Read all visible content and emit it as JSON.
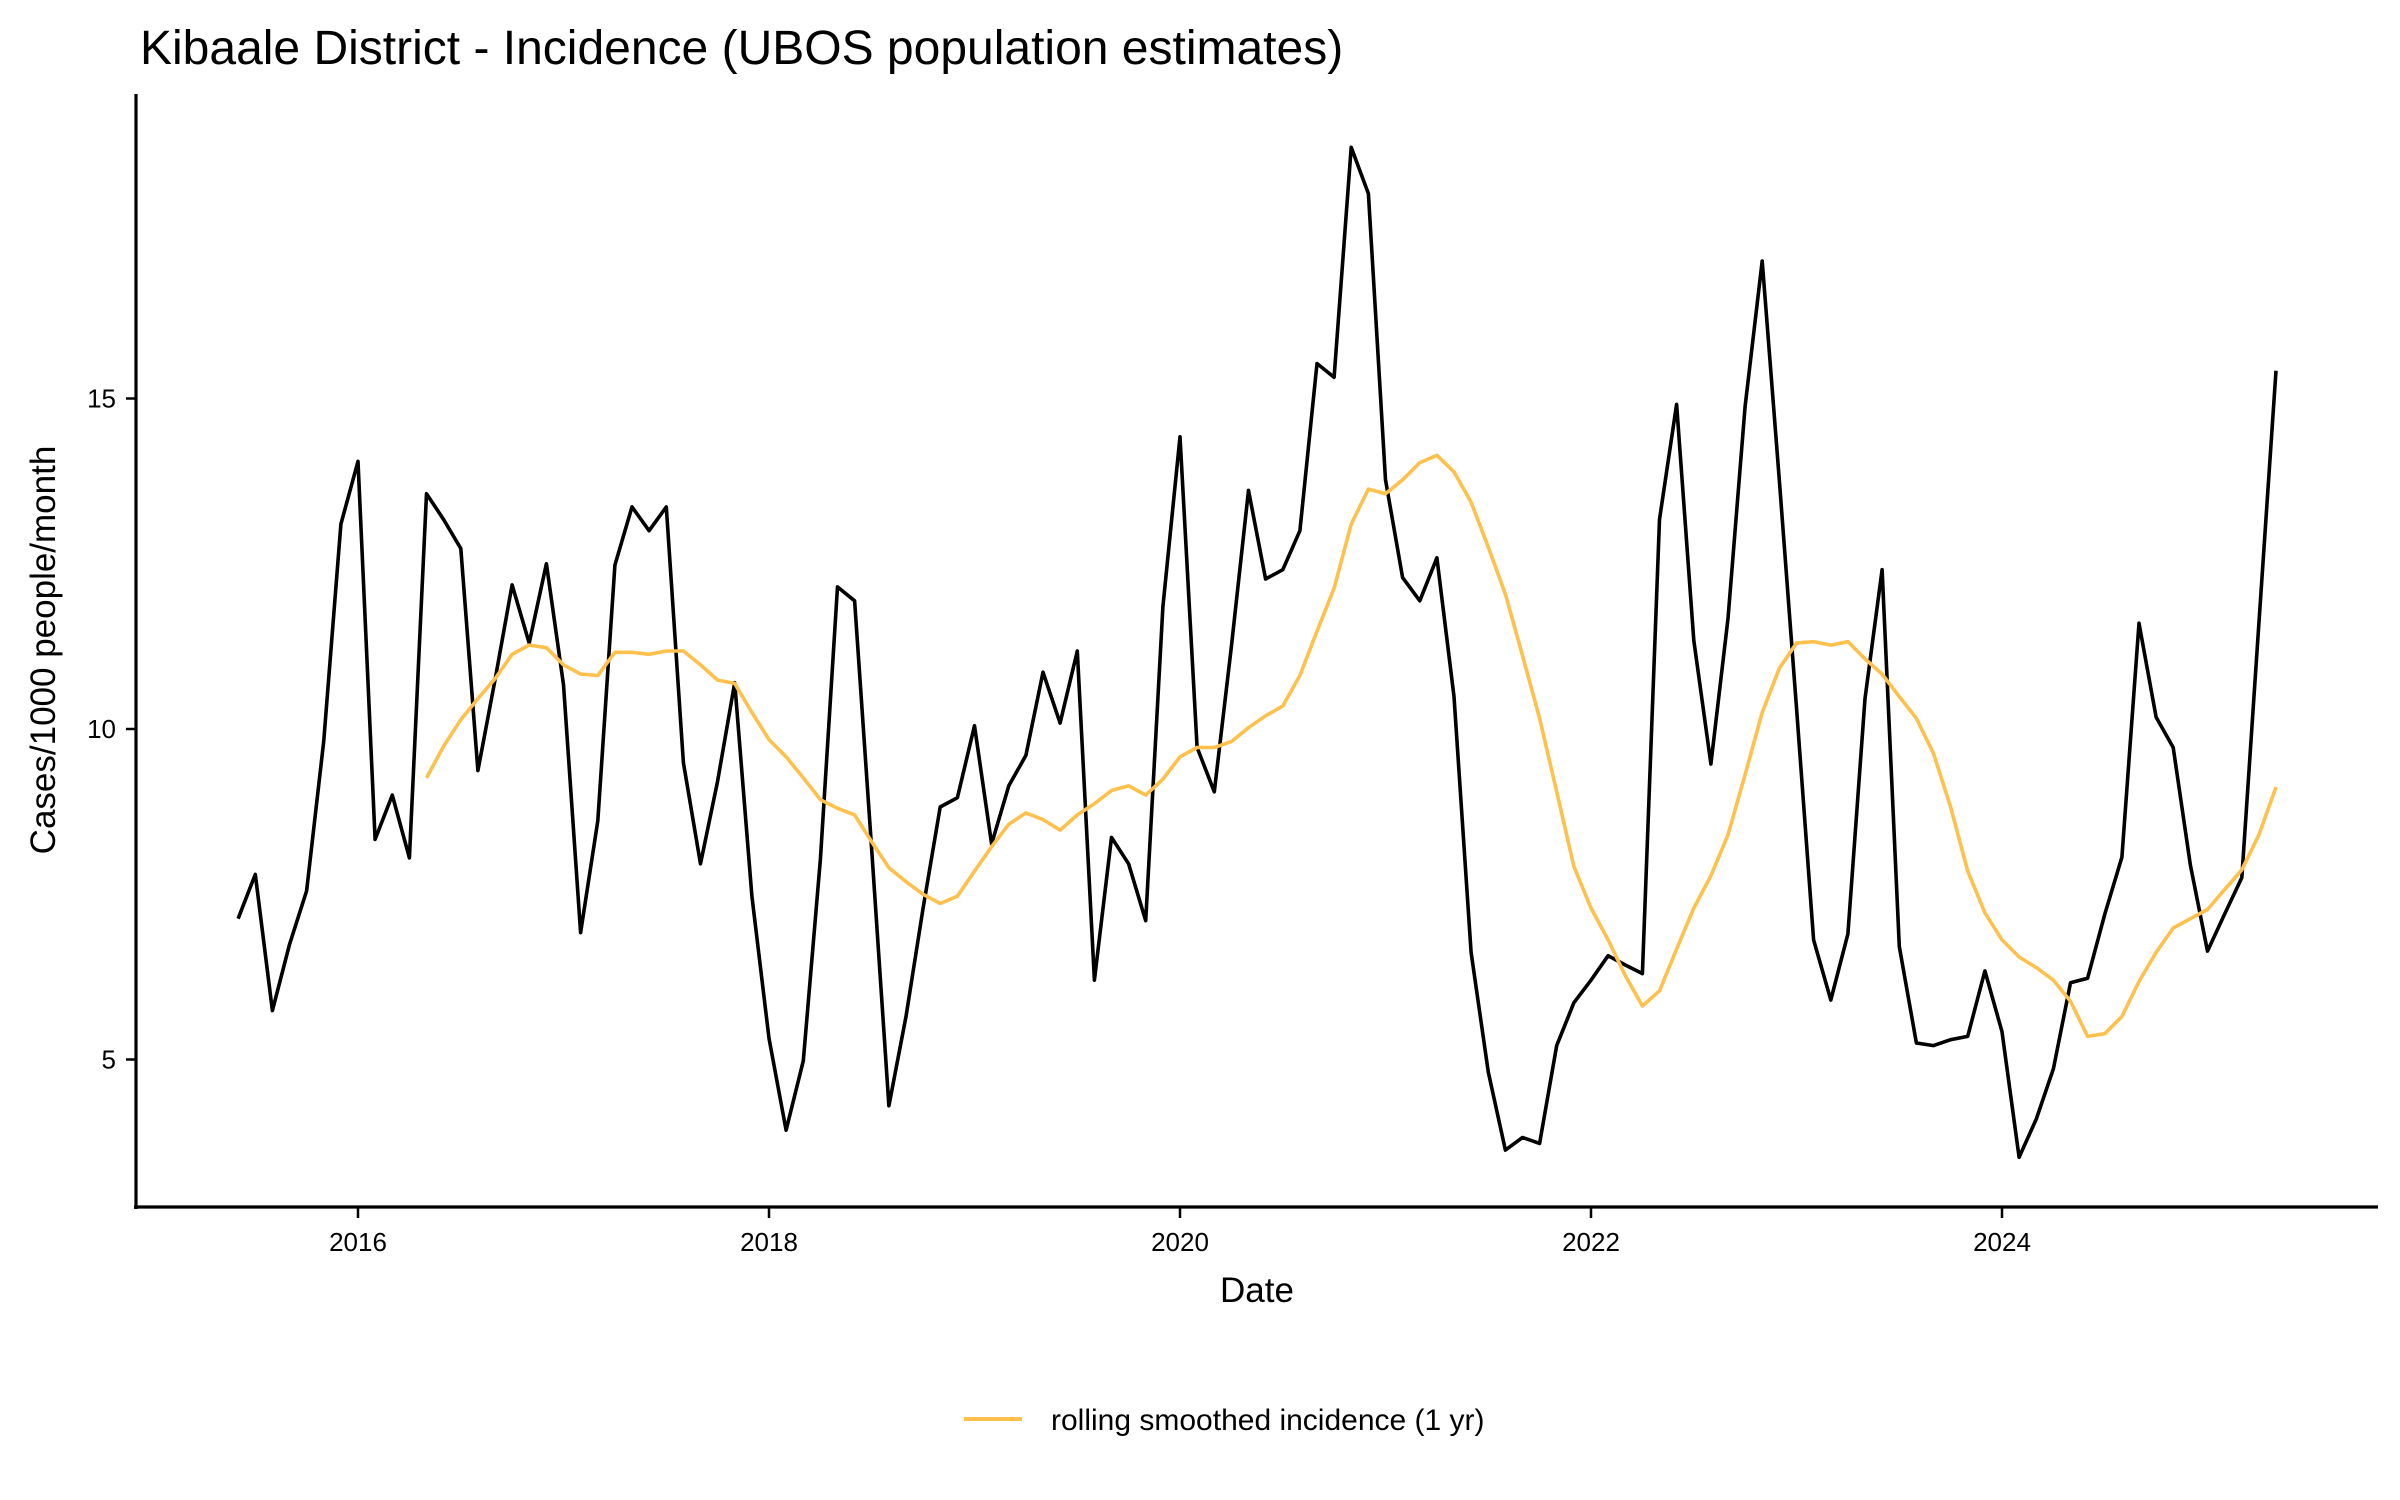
{
  "chart_data": {
    "type": "line",
    "title": "Kibaale District - Incidence (UBOS population estimates)",
    "xlabel": "Date",
    "ylabel": "Cases/1000 people/month",
    "x_ticks": [
      "2016",
      "2018",
      "2020",
      "2022",
      "2024"
    ],
    "y_ticks": [
      "5",
      "10",
      "15"
    ],
    "xlim": [
      "2015-06",
      "2025-05"
    ],
    "ylim": [
      3.0,
      19.2
    ],
    "grid": false,
    "legend": {
      "position": "bottom",
      "entries": [
        {
          "label": "rolling smoothed incidence (1 yr)",
          "color": "#FFC04C"
        }
      ]
    },
    "series": [
      {
        "name": "incidence",
        "color": "#000000",
        "start": "2015-06",
        "frequency": "monthly",
        "values": [
          7.13,
          7.8,
          5.74,
          6.74,
          7.55,
          9.81,
          13.1,
          14.05,
          8.33,
          9.0,
          8.05,
          13.56,
          13.17,
          12.73,
          9.37,
          10.74,
          12.18,
          11.3,
          12.5,
          10.67,
          6.92,
          8.61,
          12.48,
          13.36,
          13.0,
          13.36,
          9.49,
          7.96,
          9.21,
          10.7,
          7.47,
          5.32,
          3.93,
          4.98,
          8.03,
          12.15,
          11.94,
          8.15,
          4.3,
          5.65,
          7.29,
          8.82,
          8.96,
          10.05,
          8.26,
          9.14,
          9.6,
          10.86,
          10.09,
          11.18,
          6.2,
          8.36,
          7.96,
          7.1,
          11.85,
          14.42,
          9.72,
          9.05,
          11.25,
          13.61,
          12.27,
          12.41,
          13.0,
          15.53,
          15.32,
          18.8,
          18.1,
          13.77,
          12.29,
          11.94,
          12.59,
          10.49,
          6.62,
          4.81,
          3.63,
          3.82,
          3.73,
          5.21,
          5.86,
          6.2,
          6.57,
          6.43,
          6.3,
          13.17,
          14.91,
          11.34,
          9.47,
          11.67,
          14.88,
          17.08,
          13.75,
          10.32,
          6.81,
          5.9,
          6.9,
          10.46,
          12.41,
          6.71,
          5.25,
          5.21,
          5.3,
          5.35,
          6.34,
          5.42,
          3.52,
          4.1,
          4.86,
          6.16,
          6.23,
          7.2,
          8.06,
          11.6,
          10.18,
          9.72,
          7.94,
          6.64,
          7.2,
          7.75,
          11.6,
          15.42
        ]
      },
      {
        "name": "rolling smoothed incidence (1 yr)",
        "color": "#FFC04C",
        "start": "2016-05",
        "frequency": "monthly",
        "values": [
          9.26,
          9.74,
          10.14,
          10.46,
          10.76,
          11.13,
          11.27,
          11.23,
          10.97,
          10.83,
          10.81,
          11.16,
          11.16,
          11.13,
          11.18,
          11.18,
          10.97,
          10.74,
          10.69,
          10.25,
          9.84,
          9.58,
          9.26,
          8.93,
          8.8,
          8.7,
          8.29,
          7.9,
          7.69,
          7.5,
          7.36,
          7.47,
          7.85,
          8.22,
          8.56,
          8.73,
          8.63,
          8.47,
          8.7,
          8.87,
          9.07,
          9.14,
          9.0,
          9.24,
          9.58,
          9.72,
          9.72,
          9.81,
          10.02,
          10.2,
          10.35,
          10.81,
          11.48,
          12.13,
          13.1,
          13.63,
          13.56,
          13.77,
          14.03,
          14.14,
          13.89,
          13.43,
          12.75,
          12.04,
          11.11,
          10.16,
          9.05,
          7.92,
          7.29,
          6.81,
          6.27,
          5.81,
          6.04,
          6.67,
          7.29,
          7.78,
          8.4,
          9.31,
          10.25,
          10.92,
          11.3,
          11.32,
          11.27,
          11.32,
          11.06,
          10.83,
          10.49,
          10.16,
          9.63,
          8.82,
          7.85,
          7.22,
          6.81,
          6.55,
          6.39,
          6.2,
          5.88,
          5.35,
          5.39,
          5.65,
          6.18,
          6.62,
          6.99,
          7.13,
          7.27,
          7.57,
          7.87,
          8.4,
          9.12
        ]
      }
    ]
  }
}
